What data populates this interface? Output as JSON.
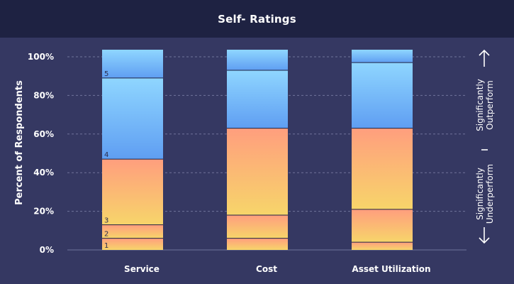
{
  "header": {
    "title": "Self- Ratings"
  },
  "chart_data": {
    "type": "bar",
    "stacked": true,
    "title": "Self- Ratings",
    "ylabel": "Percent of Respondents",
    "xlabel": "",
    "ylim": [
      0,
      100
    ],
    "yticks": [
      "0%",
      "20%",
      "40%",
      "60%",
      "80%",
      "100%"
    ],
    "grid": true,
    "categories": [
      "Service",
      "Cost",
      "Asset Utilization"
    ],
    "series": [
      {
        "name": "1",
        "values": [
          6,
          6,
          4
        ]
      },
      {
        "name": "2",
        "values": [
          7,
          12,
          17
        ]
      },
      {
        "name": "3",
        "values": [
          34,
          45,
          42
        ]
      },
      {
        "name": "4",
        "values": [
          42,
          30,
          34
        ]
      },
      {
        "name": "5",
        "values": [
          11,
          7,
          3
        ]
      }
    ],
    "series_labels_shown_on": "Service",
    "side_annotations": {
      "top": "Significantly Outperform",
      "bottom": "Significantly Underperform"
    },
    "colors": {
      "background": "#353862",
      "header": "#1e2242",
      "warm_top": "#ff9e7e",
      "warm_bottom": "#f7d56a",
      "cool_top": "#8fd6ff",
      "cool_bottom": "#5f9ef2",
      "divider": "#1e2242"
    }
  }
}
